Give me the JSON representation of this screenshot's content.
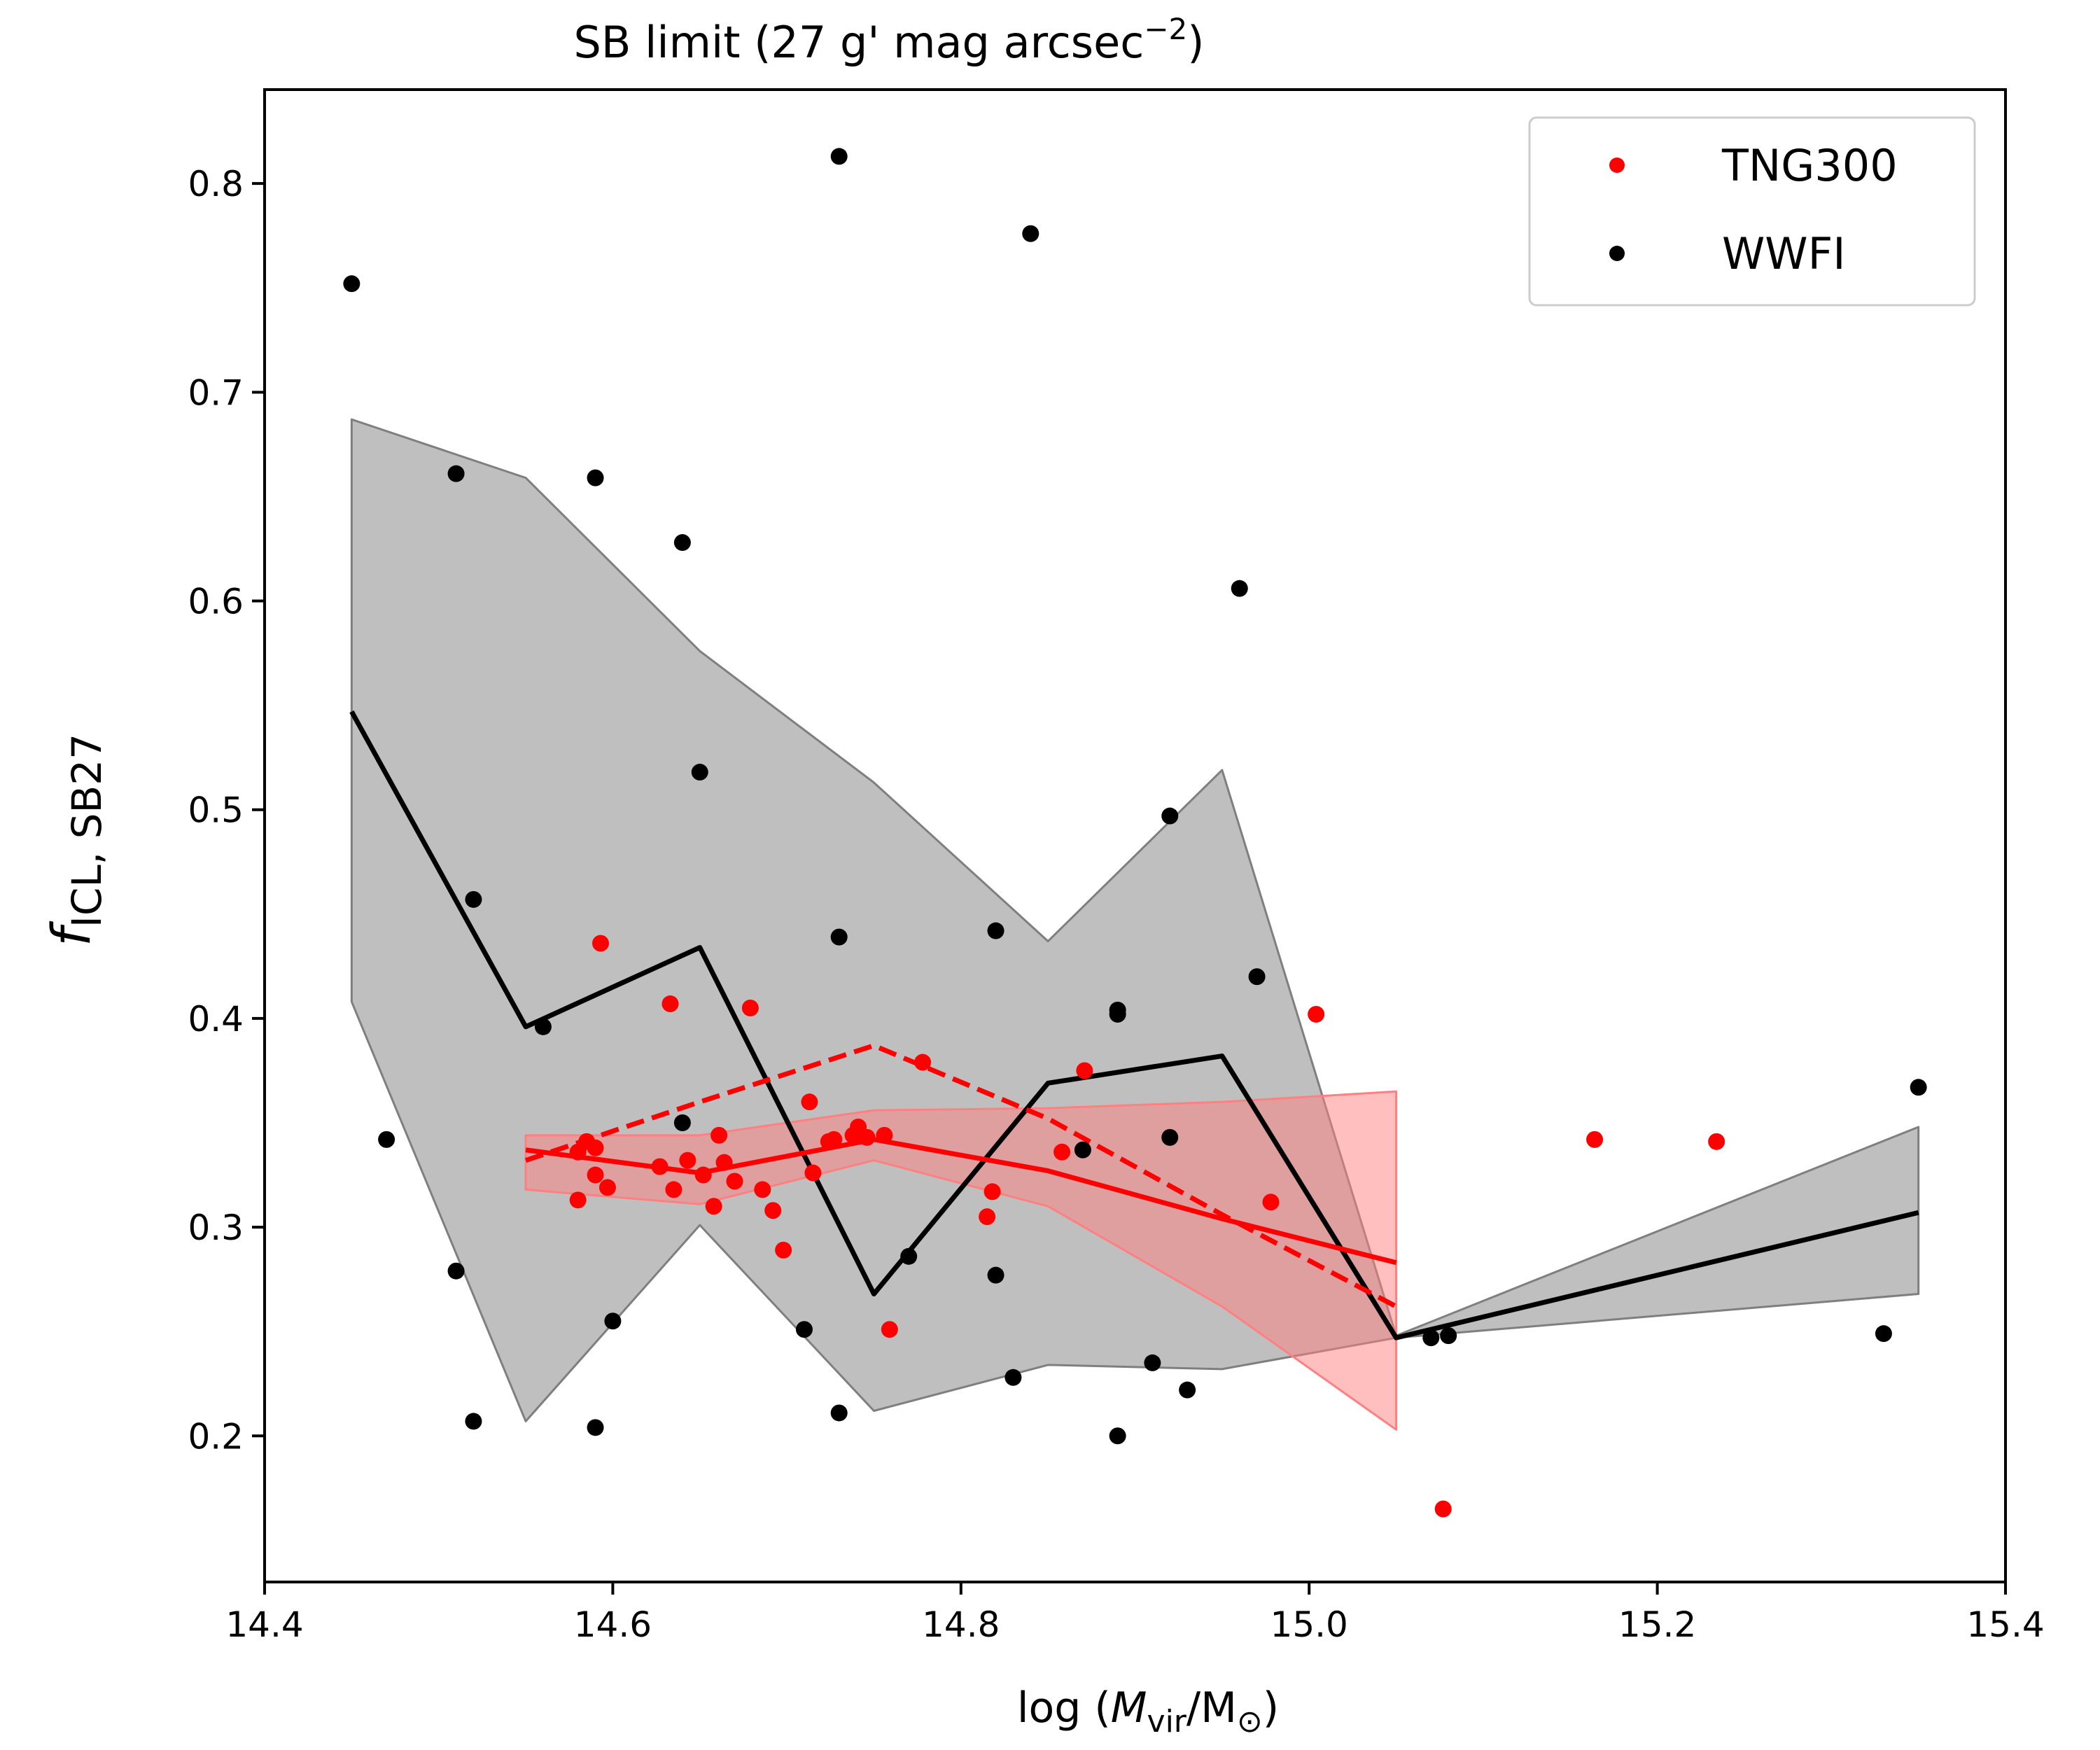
{
  "chart_data": {
    "type": "scatter",
    "title": {
      "main": "SB limit (27 g' mag arcsec",
      "sup": "−2",
      "close": ")"
    },
    "xlabel": {
      "prefix": "log (",
      "m": "M",
      "vir": "vir",
      "slash": "/M",
      "sun": "⊙",
      "close": ")"
    },
    "ylabel": {
      "f": "f",
      "sub": "ICL, SB27"
    },
    "xlim": [
      14.4,
      15.4
    ],
    "ylim": [
      0.13,
      0.845
    ],
    "xticks": [
      14.4,
      14.6,
      14.8,
      15.0,
      15.2,
      15.4
    ],
    "xtick_labels": [
      "14.4",
      "14.6",
      "14.8",
      "15.0",
      "15.2",
      "15.4"
    ],
    "yticks": [
      0.2,
      0.3,
      0.4,
      0.5,
      0.6,
      0.7,
      0.8
    ],
    "ytick_labels": [
      "0.2",
      "0.3",
      "0.4",
      "0.5",
      "0.6",
      "0.7",
      "0.8"
    ],
    "grid": false,
    "legend_placement": "top-right",
    "legend": [
      {
        "label": "TNG300",
        "color": "#ff0000"
      },
      {
        "label": "WWFI",
        "color": "#000000"
      }
    ],
    "series": [
      {
        "name": "WWFI",
        "color": "#000000",
        "points": [
          [
            14.45,
            0.752
          ],
          [
            14.47,
            0.342
          ],
          [
            14.51,
            0.661
          ],
          [
            14.51,
            0.279
          ],
          [
            14.52,
            0.457
          ],
          [
            14.52,
            0.207
          ],
          [
            14.56,
            0.396
          ],
          [
            14.59,
            0.659
          ],
          [
            14.59,
            0.204
          ],
          [
            14.6,
            0.255
          ],
          [
            14.64,
            0.628
          ],
          [
            14.64,
            0.35
          ],
          [
            14.65,
            0.518
          ],
          [
            14.71,
            0.251
          ],
          [
            14.73,
            0.813
          ],
          [
            14.73,
            0.439
          ],
          [
            14.73,
            0.211
          ],
          [
            14.77,
            0.286
          ],
          [
            14.82,
            0.442
          ],
          [
            14.82,
            0.277
          ],
          [
            14.83,
            0.228
          ],
          [
            14.84,
            0.776
          ],
          [
            14.87,
            0.337
          ],
          [
            14.89,
            0.404
          ],
          [
            14.89,
            0.402
          ],
          [
            14.89,
            0.2
          ],
          [
            14.91,
            0.235
          ],
          [
            14.92,
            0.497
          ],
          [
            14.92,
            0.343
          ],
          [
            14.93,
            0.222
          ],
          [
            14.96,
            0.606
          ],
          [
            14.97,
            0.42
          ],
          [
            15.07,
            0.247
          ],
          [
            15.08,
            0.248
          ],
          [
            15.33,
            0.249
          ],
          [
            15.35,
            0.367
          ]
        ]
      },
      {
        "name": "TNG300",
        "color": "#ff0000",
        "points": [
          [
            14.58,
            0.313
          ],
          [
            14.58,
            0.336
          ],
          [
            14.585,
            0.341
          ],
          [
            14.59,
            0.325
          ],
          [
            14.59,
            0.338
          ],
          [
            14.593,
            0.436
          ],
          [
            14.597,
            0.319
          ],
          [
            14.627,
            0.329
          ],
          [
            14.633,
            0.407
          ],
          [
            14.635,
            0.318
          ],
          [
            14.643,
            0.332
          ],
          [
            14.652,
            0.325
          ],
          [
            14.658,
            0.31
          ],
          [
            14.661,
            0.344
          ],
          [
            14.664,
            0.331
          ],
          [
            14.67,
            0.322
          ],
          [
            14.679,
            0.405
          ],
          [
            14.686,
            0.318
          ],
          [
            14.692,
            0.308
          ],
          [
            14.698,
            0.289
          ],
          [
            14.713,
            0.36
          ],
          [
            14.715,
            0.326
          ],
          [
            14.724,
            0.341
          ],
          [
            14.727,
            0.342
          ],
          [
            14.738,
            0.344
          ],
          [
            14.741,
            0.348
          ],
          [
            14.746,
            0.343
          ],
          [
            14.756,
            0.344
          ],
          [
            14.759,
            0.251
          ],
          [
            14.778,
            0.379
          ],
          [
            14.815,
            0.305
          ],
          [
            14.818,
            0.317
          ],
          [
            14.858,
            0.336
          ],
          [
            14.871,
            0.375
          ],
          [
            14.978,
            0.312
          ],
          [
            15.004,
            0.402
          ],
          [
            15.077,
            0.165
          ],
          [
            15.164,
            0.342
          ],
          [
            15.234,
            0.341
          ]
        ]
      },
      {
        "name": "WWFI",
        "kind": "line",
        "color": "#000000",
        "points": [
          [
            14.45,
            0.547
          ],
          [
            14.55,
            0.396
          ],
          [
            14.65,
            0.434
          ],
          [
            14.75,
            0.268
          ],
          [
            14.85,
            0.369
          ],
          [
            14.95,
            0.382
          ],
          [
            15.05,
            0.247
          ],
          [
            15.35,
            0.307
          ]
        ]
      },
      {
        "name": "WWFI",
        "kind": "band",
        "color": "#7f7f7f",
        "upper": [
          [
            14.45,
            0.687
          ],
          [
            14.55,
            0.659
          ],
          [
            14.65,
            0.576
          ],
          [
            14.75,
            0.513
          ],
          [
            14.85,
            0.437
          ],
          [
            14.95,
            0.519
          ],
          [
            15.05,
            0.248
          ],
          [
            15.35,
            0.348
          ]
        ],
        "lower": [
          [
            14.45,
            0.408
          ],
          [
            14.55,
            0.207
          ],
          [
            14.65,
            0.301
          ],
          [
            14.75,
            0.212
          ],
          [
            14.85,
            0.234
          ],
          [
            14.95,
            0.232
          ],
          [
            15.05,
            0.247
          ],
          [
            15.35,
            0.268
          ]
        ]
      },
      {
        "name": "TNG300",
        "kind": "line",
        "color": "#ff0000",
        "points": [
          [
            14.55,
            0.337
          ],
          [
            14.65,
            0.326
          ],
          [
            14.75,
            0.342
          ],
          [
            14.85,
            0.327
          ],
          [
            14.95,
            0.304
          ],
          [
            15.05,
            0.283
          ]
        ]
      },
      {
        "name": "TNG300",
        "kind": "dashed-line",
        "color": "#ff0000",
        "points": [
          [
            14.55,
            0.332
          ],
          [
            14.65,
            0.36
          ],
          [
            14.75,
            0.387
          ],
          [
            14.85,
            0.352
          ],
          [
            14.95,
            0.306
          ],
          [
            15.05,
            0.262
          ]
        ]
      },
      {
        "name": "TNG300",
        "kind": "band",
        "color": "#ff8080",
        "upper": [
          [
            14.55,
            0.344
          ],
          [
            14.65,
            0.344
          ],
          [
            14.75,
            0.356
          ],
          [
            14.85,
            0.357
          ],
          [
            14.95,
            0.36
          ],
          [
            15.05,
            0.365
          ]
        ],
        "lower": [
          [
            14.55,
            0.318
          ],
          [
            14.65,
            0.311
          ],
          [
            14.75,
            0.332
          ],
          [
            14.85,
            0.31
          ],
          [
            14.95,
            0.262
          ],
          [
            15.05,
            0.203
          ]
        ]
      }
    ]
  }
}
